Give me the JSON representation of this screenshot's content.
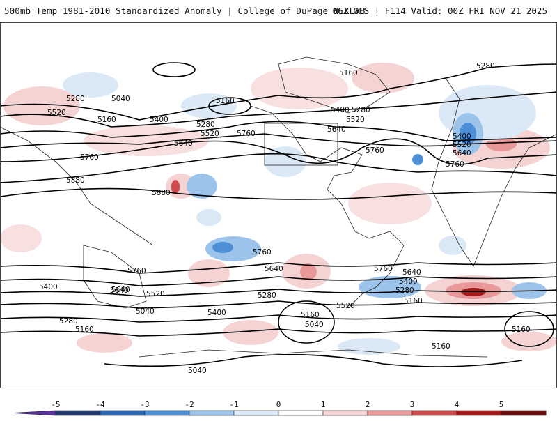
{
  "header": {
    "title": "500mb Temp 1981-2010 Standardized Anomaly | College of DuPage NEXLAB",
    "run_info": "06Z GFS | F114 Valid: 00Z FRI NOV 21 2025"
  },
  "map": {
    "contour_labels": [
      "5280",
      "5040",
      "5160",
      "5520",
      "5160",
      "5400",
      "5280",
      "5520",
      "5760",
      "5640",
      "5760",
      "5880",
      "5880",
      "5160",
      "5400",
      "5280",
      "5520",
      "5640",
      "5760",
      "5280",
      "5400",
      "5520",
      "5640",
      "5760",
      "5160",
      "5640",
      "5760",
      "5760",
      "5640",
      "5400",
      "5640",
      "5520",
      "5280",
      "5400",
      "5040",
      "5160",
      "5040",
      "5280",
      "5160",
      "5520",
      "5760",
      "5640",
      "5400",
      "5280",
      "5160",
      "5160",
      "5040"
    ]
  },
  "colorbar": {
    "ticks": [
      "-5",
      "-4",
      "-3",
      "-2",
      "-1",
      "0",
      "1",
      "2",
      "3",
      "4",
      "5"
    ],
    "colors": [
      "#5b2fa0",
      "#233a6e",
      "#2c67b5",
      "#4d8fd6",
      "#9cc3ea",
      "#dbe9f6",
      "#ffffff",
      "#f6d3d3",
      "#e89898",
      "#cf4b4b",
      "#a51b1b",
      "#6e0f0f",
      "#f2c211"
    ]
  }
}
